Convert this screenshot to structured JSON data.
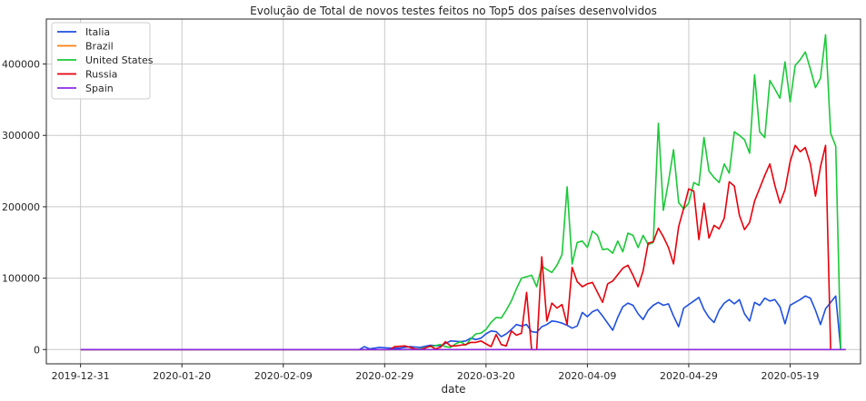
{
  "chart_data": {
    "type": "line",
    "title": "Evolução de Total de novos testes feitos no Top5 dos países desenvolvidos",
    "xlabel": "date",
    "ylabel": "",
    "x_tick_labels": [
      "2019-12-31",
      "2020-01-20",
      "2020-02-09",
      "2020-02-29",
      "2020-03-20",
      "2020-04-09",
      "2020-04-29",
      "2020-05-19"
    ],
    "y_tick_labels": [
      "0",
      "100000",
      "200000",
      "300000",
      "400000"
    ],
    "x_range": [
      "2019-12-31",
      "2020-05-27"
    ],
    "ylim": [
      -20000,
      463000
    ],
    "grid": true,
    "legend_position": "top-left",
    "series": [
      {
        "name": "Italia",
        "color": "#1f4fe0",
        "points": [
          [
            "2019-12-31",
            0
          ],
          [
            "2020-02-24",
            0
          ],
          [
            "2020-02-25",
            4000
          ],
          [
            "2020-02-26",
            1000
          ],
          [
            "2020-02-28",
            3000
          ],
          [
            "2020-03-01",
            2000
          ],
          [
            "2020-03-03",
            2000
          ],
          [
            "2020-03-05",
            4000
          ],
          [
            "2020-03-07",
            3000
          ],
          [
            "2020-03-09",
            6000
          ],
          [
            "2020-03-11",
            5000
          ],
          [
            "2020-03-13",
            12000
          ],
          [
            "2020-03-15",
            11000
          ],
          [
            "2020-03-16",
            12000
          ],
          [
            "2020-03-17",
            16000
          ],
          [
            "2020-03-18",
            14000
          ],
          [
            "2020-03-19",
            16000
          ],
          [
            "2020-03-20",
            22000
          ],
          [
            "2020-03-21",
            26000
          ],
          [
            "2020-03-22",
            25000
          ],
          [
            "2020-03-23",
            18000
          ],
          [
            "2020-03-24",
            22000
          ],
          [
            "2020-03-25",
            28000
          ],
          [
            "2020-03-26",
            35000
          ],
          [
            "2020-03-27",
            33000
          ],
          [
            "2020-03-28",
            35000
          ],
          [
            "2020-03-29",
            25000
          ],
          [
            "2020-03-30",
            24000
          ],
          [
            "2020-03-31",
            32000
          ],
          [
            "2020-04-01",
            35000
          ],
          [
            "2020-04-02",
            40000
          ],
          [
            "2020-04-03",
            39000
          ],
          [
            "2020-04-04",
            37000
          ],
          [
            "2020-04-05",
            34000
          ],
          [
            "2020-04-06",
            30000
          ],
          [
            "2020-04-07",
            33000
          ],
          [
            "2020-04-08",
            52000
          ],
          [
            "2020-04-09",
            46000
          ],
          [
            "2020-04-10",
            53000
          ],
          [
            "2020-04-11",
            56000
          ],
          [
            "2020-04-12",
            47000
          ],
          [
            "2020-04-14",
            27000
          ],
          [
            "2020-04-15",
            45000
          ],
          [
            "2020-04-16",
            60000
          ],
          [
            "2020-04-17",
            65000
          ],
          [
            "2020-04-18",
            62000
          ],
          [
            "2020-04-19",
            50000
          ],
          [
            "2020-04-20",
            42000
          ],
          [
            "2020-04-21",
            55000
          ],
          [
            "2020-04-22",
            62000
          ],
          [
            "2020-04-23",
            66000
          ],
          [
            "2020-04-24",
            62000
          ],
          [
            "2020-04-25",
            64000
          ],
          [
            "2020-04-26",
            47000
          ],
          [
            "2020-04-27",
            32000
          ],
          [
            "2020-04-28",
            58000
          ],
          [
            "2020-04-30",
            68000
          ],
          [
            "2020-05-01",
            73000
          ],
          [
            "2020-05-02",
            56000
          ],
          [
            "2020-05-03",
            45000
          ],
          [
            "2020-05-04",
            38000
          ],
          [
            "2020-05-05",
            55000
          ],
          [
            "2020-05-06",
            65000
          ],
          [
            "2020-05-07",
            70000
          ],
          [
            "2020-05-08",
            64000
          ],
          [
            "2020-05-09",
            70000
          ],
          [
            "2020-05-10",
            50000
          ],
          [
            "2020-05-11",
            40000
          ],
          [
            "2020-05-12",
            66000
          ],
          [
            "2020-05-13",
            62000
          ],
          [
            "2020-05-14",
            72000
          ],
          [
            "2020-05-15",
            68000
          ],
          [
            "2020-05-16",
            70000
          ],
          [
            "2020-05-17",
            60000
          ],
          [
            "2020-05-18",
            36000
          ],
          [
            "2020-05-19",
            62000
          ],
          [
            "2020-05-20",
            66000
          ],
          [
            "2020-05-21",
            70000
          ],
          [
            "2020-05-22",
            75000
          ],
          [
            "2020-05-23",
            72000
          ],
          [
            "2020-05-24",
            55000
          ],
          [
            "2020-05-25",
            35000
          ],
          [
            "2020-05-26",
            57000
          ],
          [
            "2020-05-28",
            75000
          ],
          [
            "2020-05-29",
            0
          ]
        ]
      },
      {
        "name": "Brazil",
        "color": "#ff7f0e",
        "points": [
          [
            "2019-12-31",
            0
          ],
          [
            "2020-05-30",
            0
          ]
        ]
      },
      {
        "name": "United States",
        "color": "#1ac938",
        "points": [
          [
            "2019-12-31",
            0
          ],
          [
            "2020-03-04",
            0
          ],
          [
            "2020-03-07",
            1000
          ],
          [
            "2020-03-09",
            4000
          ],
          [
            "2020-03-11",
            7000
          ],
          [
            "2020-03-12",
            4000
          ],
          [
            "2020-03-13",
            3000
          ],
          [
            "2020-03-14",
            8000
          ],
          [
            "2020-03-15",
            11000
          ],
          [
            "2020-03-16",
            6000
          ],
          [
            "2020-03-17",
            15000
          ],
          [
            "2020-03-18",
            22000
          ],
          [
            "2020-03-19",
            23000
          ],
          [
            "2020-03-20",
            28000
          ],
          [
            "2020-03-21",
            38000
          ],
          [
            "2020-03-22",
            45000
          ],
          [
            "2020-03-23",
            44000
          ],
          [
            "2020-03-24",
            55000
          ],
          [
            "2020-03-25",
            68000
          ],
          [
            "2020-03-26",
            85000
          ],
          [
            "2020-03-27",
            100000
          ],
          [
            "2020-03-29",
            104000
          ],
          [
            "2020-03-30",
            88000
          ],
          [
            "2020-03-31",
            117000
          ],
          [
            "2020-04-01",
            112000
          ],
          [
            "2020-04-02",
            108000
          ],
          [
            "2020-04-03",
            118000
          ],
          [
            "2020-04-04",
            133000
          ],
          [
            "2020-04-05",
            228000
          ],
          [
            "2020-04-06",
            120000
          ],
          [
            "2020-04-07",
            150000
          ],
          [
            "2020-04-08",
            152000
          ],
          [
            "2020-04-09",
            143000
          ],
          [
            "2020-04-10",
            166000
          ],
          [
            "2020-04-11",
            160000
          ],
          [
            "2020-04-12",
            140000
          ],
          [
            "2020-04-13",
            141000
          ],
          [
            "2020-04-14",
            135000
          ],
          [
            "2020-04-15",
            152000
          ],
          [
            "2020-04-16",
            137000
          ],
          [
            "2020-04-17",
            163000
          ],
          [
            "2020-04-18",
            160000
          ],
          [
            "2020-04-19",
            143000
          ],
          [
            "2020-04-20",
            160000
          ],
          [
            "2020-04-21",
            147000
          ],
          [
            "2020-04-22",
            150000
          ],
          [
            "2020-04-23",
            317000
          ],
          [
            "2020-04-24",
            195000
          ],
          [
            "2020-04-25",
            235000
          ],
          [
            "2020-04-26",
            280000
          ],
          [
            "2020-04-27",
            206000
          ],
          [
            "2020-04-28",
            197000
          ],
          [
            "2020-04-29",
            205000
          ],
          [
            "2020-04-30",
            234000
          ],
          [
            "2020-05-01",
            230000
          ],
          [
            "2020-05-02",
            297000
          ],
          [
            "2020-05-03",
            250000
          ],
          [
            "2020-05-04",
            241000
          ],
          [
            "2020-05-05",
            234000
          ],
          [
            "2020-05-06",
            260000
          ],
          [
            "2020-05-07",
            247000
          ],
          [
            "2020-05-08",
            305000
          ],
          [
            "2020-05-09",
            300000
          ],
          [
            "2020-05-10",
            294000
          ],
          [
            "2020-05-11",
            275000
          ],
          [
            "2020-05-12",
            385000
          ],
          [
            "2020-05-13",
            305000
          ],
          [
            "2020-05-14",
            297000
          ],
          [
            "2020-05-15",
            377000
          ],
          [
            "2020-05-16",
            365000
          ],
          [
            "2020-05-17",
            352000
          ],
          [
            "2020-05-18",
            403000
          ],
          [
            "2020-05-19",
            347000
          ],
          [
            "2020-05-20",
            398000
          ],
          [
            "2020-05-21",
            406000
          ],
          [
            "2020-05-22",
            417000
          ],
          [
            "2020-05-23",
            393000
          ],
          [
            "2020-05-24",
            367000
          ],
          [
            "2020-05-25",
            380000
          ],
          [
            "2020-05-26",
            441000
          ],
          [
            "2020-05-27",
            303000
          ],
          [
            "2020-05-28",
            285000
          ],
          [
            "2020-05-29",
            0
          ]
        ]
      },
      {
        "name": "Russia",
        "color": "#e8000b",
        "points": [
          [
            "2019-12-31",
            0
          ],
          [
            "2020-03-01",
            0
          ],
          [
            "2020-03-02",
            4000
          ],
          [
            "2020-03-04",
            5000
          ],
          [
            "2020-03-06",
            1000
          ],
          [
            "2020-03-07",
            0
          ],
          [
            "2020-03-08",
            2000
          ],
          [
            "2020-03-09",
            5000
          ],
          [
            "2020-03-10",
            1000
          ],
          [
            "2020-03-11",
            3000
          ],
          [
            "2020-03-12",
            11000
          ],
          [
            "2020-03-13",
            5000
          ],
          [
            "2020-03-14",
            5000
          ],
          [
            "2020-03-15",
            6000
          ],
          [
            "2020-03-16",
            7000
          ],
          [
            "2020-03-17",
            10000
          ],
          [
            "2020-03-18",
            10000
          ],
          [
            "2020-03-19",
            12000
          ],
          [
            "2020-03-20",
            8000
          ],
          [
            "2020-03-21",
            4000
          ],
          [
            "2020-03-22",
            21000
          ],
          [
            "2020-03-23",
            7000
          ],
          [
            "2020-03-24",
            5000
          ],
          [
            "2020-03-25",
            26000
          ],
          [
            "2020-03-26",
            20000
          ],
          [
            "2020-03-27",
            23000
          ],
          [
            "2020-03-28",
            80000
          ],
          [
            "2020-03-29",
            0
          ],
          [
            "2020-03-30",
            0
          ],
          [
            "2020-03-31",
            130000
          ],
          [
            "2020-04-01",
            40000
          ],
          [
            "2020-04-02",
            65000
          ],
          [
            "2020-04-03",
            58000
          ],
          [
            "2020-04-04",
            63000
          ],
          [
            "2020-04-05",
            35000
          ],
          [
            "2020-04-06",
            115000
          ],
          [
            "2020-04-07",
            95000
          ],
          [
            "2020-04-08",
            88000
          ],
          [
            "2020-04-09",
            92000
          ],
          [
            "2020-04-10",
            94000
          ],
          [
            "2020-04-12",
            66000
          ],
          [
            "2020-04-13",
            92000
          ],
          [
            "2020-04-14",
            96000
          ],
          [
            "2020-04-15",
            105000
          ],
          [
            "2020-04-16",
            114000
          ],
          [
            "2020-04-17",
            118000
          ],
          [
            "2020-04-18",
            104000
          ],
          [
            "2020-04-19",
            88000
          ],
          [
            "2020-04-20",
            110000
          ],
          [
            "2020-04-21",
            149000
          ],
          [
            "2020-04-22",
            151000
          ],
          [
            "2020-04-23",
            170000
          ],
          [
            "2020-04-24",
            158000
          ],
          [
            "2020-04-25",
            143000
          ],
          [
            "2020-04-26",
            120000
          ],
          [
            "2020-04-27",
            172000
          ],
          [
            "2020-04-28",
            198000
          ],
          [
            "2020-04-29",
            225000
          ],
          [
            "2020-04-30",
            222000
          ],
          [
            "2020-05-01",
            154000
          ],
          [
            "2020-05-02",
            205000
          ],
          [
            "2020-05-03",
            156000
          ],
          [
            "2020-05-04",
            174000
          ],
          [
            "2020-05-05",
            169000
          ],
          [
            "2020-05-06",
            184000
          ],
          [
            "2020-05-07",
            235000
          ],
          [
            "2020-05-08",
            229000
          ],
          [
            "2020-05-09",
            188000
          ],
          [
            "2020-05-10",
            168000
          ],
          [
            "2020-05-11",
            178000
          ],
          [
            "2020-05-12",
            208000
          ],
          [
            "2020-05-13",
            226000
          ],
          [
            "2020-05-14",
            244000
          ],
          [
            "2020-05-15",
            260000
          ],
          [
            "2020-05-16",
            230000
          ],
          [
            "2020-05-17",
            205000
          ],
          [
            "2020-05-18",
            224000
          ],
          [
            "2020-05-19",
            263000
          ],
          [
            "2020-05-20",
            286000
          ],
          [
            "2020-05-21",
            277000
          ],
          [
            "2020-05-22",
            283000
          ],
          [
            "2020-05-23",
            260000
          ],
          [
            "2020-05-24",
            215000
          ],
          [
            "2020-05-25",
            256000
          ],
          [
            "2020-05-26",
            286000
          ],
          [
            "2020-05-27",
            0
          ]
        ]
      },
      {
        "name": "Spain",
        "color": "#8b2be2",
        "points": [
          [
            "2019-12-31",
            0
          ],
          [
            "2020-05-30",
            0
          ]
        ]
      }
    ]
  }
}
